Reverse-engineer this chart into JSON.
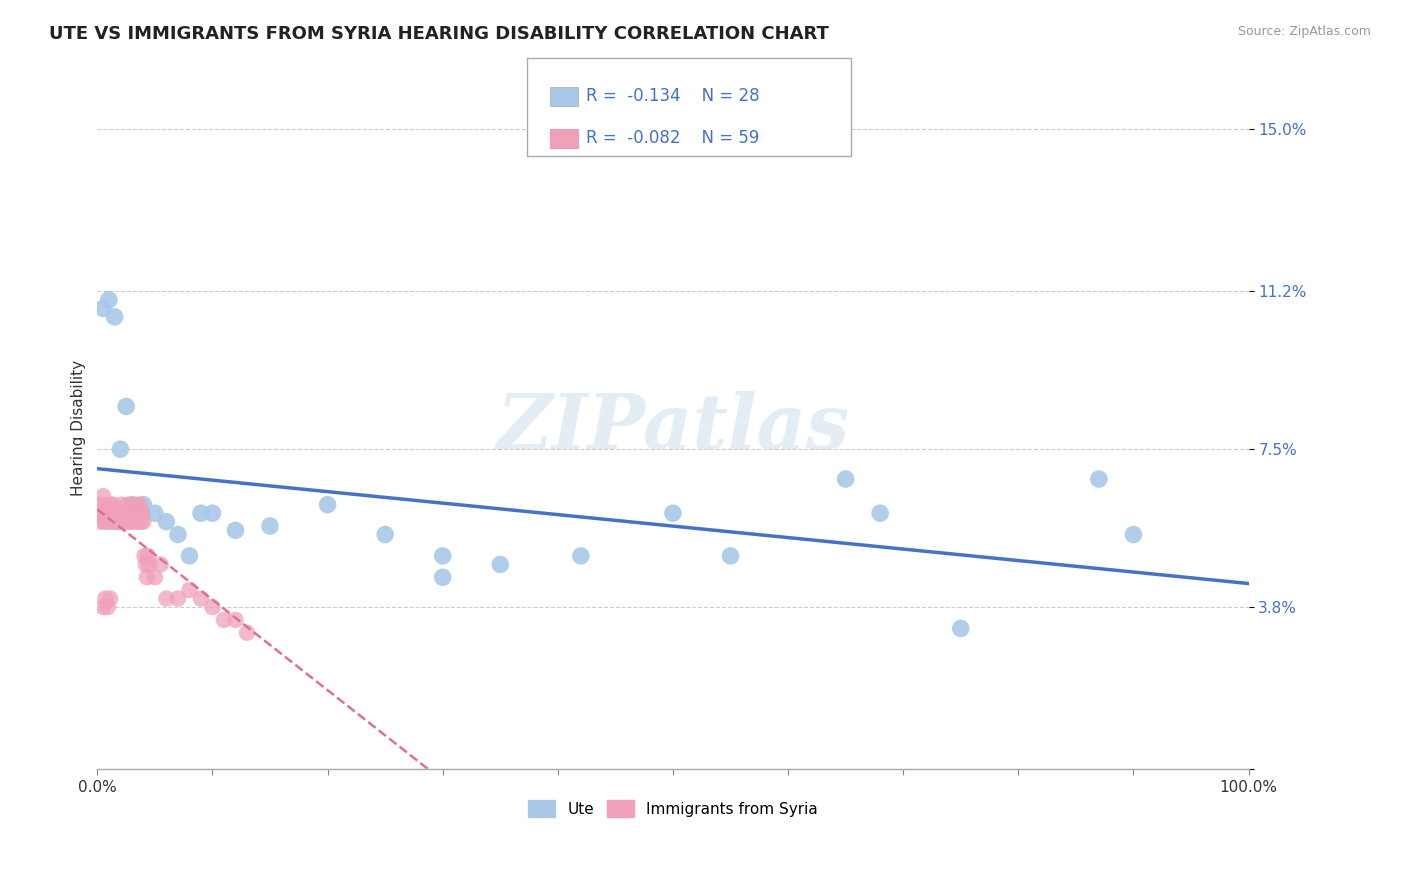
{
  "title": "UTE VS IMMIGRANTS FROM SYRIA HEARING DISABILITY CORRELATION CHART",
  "source": "Source: ZipAtlas.com",
  "ylabel": "Hearing Disability",
  "ytick_vals": [
    0.0,
    0.038,
    0.075,
    0.112,
    0.15
  ],
  "ytick_labels": [
    "",
    "3.8%",
    "7.5%",
    "11.2%",
    "15.0%"
  ],
  "ylim": [
    0.0,
    0.16
  ],
  "xlim": [
    0.0,
    1.0
  ],
  "blue_color": "#a8c8e8",
  "pink_color": "#f0a0b8",
  "trendline_blue": "#4472c4",
  "trendline_pink": "#e07090",
  "legend_blue_R": "-0.134",
  "legend_blue_N": "28",
  "legend_pink_R": "-0.082",
  "legend_pink_N": "59",
  "legend_label_blue": "Ute",
  "legend_label_pink": "Immigrants from Syria",
  "ute_x": [
    0.005,
    0.01,
    0.015,
    0.02,
    0.025,
    0.03,
    0.04,
    0.05,
    0.06,
    0.07,
    0.08,
    0.09,
    0.1,
    0.12,
    0.15,
    0.2,
    0.25,
    0.3,
    0.35,
    0.42,
    0.5,
    0.65,
    0.75,
    0.87,
    0.3,
    0.55,
    0.68,
    0.9
  ],
  "ute_y": [
    0.108,
    0.11,
    0.106,
    0.075,
    0.085,
    0.062,
    0.062,
    0.06,
    0.058,
    0.055,
    0.05,
    0.06,
    0.06,
    0.056,
    0.057,
    0.062,
    0.055,
    0.05,
    0.048,
    0.05,
    0.06,
    0.068,
    0.033,
    0.068,
    0.045,
    0.05,
    0.06,
    0.055
  ],
  "syria_x": [
    0.001,
    0.002,
    0.003,
    0.004,
    0.005,
    0.006,
    0.007,
    0.008,
    0.009,
    0.01,
    0.011,
    0.012,
    0.013,
    0.014,
    0.015,
    0.016,
    0.017,
    0.018,
    0.019,
    0.02,
    0.021,
    0.022,
    0.023,
    0.024,
    0.025,
    0.026,
    0.027,
    0.028,
    0.029,
    0.03,
    0.031,
    0.032,
    0.033,
    0.034,
    0.035,
    0.036,
    0.037,
    0.038,
    0.039,
    0.04,
    0.041,
    0.042,
    0.043,
    0.044,
    0.045,
    0.05,
    0.055,
    0.06,
    0.07,
    0.08,
    0.09,
    0.1,
    0.11,
    0.12,
    0.13,
    0.005,
    0.007,
    0.009,
    0.011
  ],
  "syria_y": [
    0.06,
    0.062,
    0.058,
    0.06,
    0.064,
    0.058,
    0.062,
    0.06,
    0.058,
    0.06,
    0.062,
    0.058,
    0.06,
    0.062,
    0.058,
    0.06,
    0.058,
    0.06,
    0.058,
    0.06,
    0.062,
    0.058,
    0.06,
    0.058,
    0.06,
    0.062,
    0.058,
    0.06,
    0.058,
    0.06,
    0.062,
    0.058,
    0.06,
    0.062,
    0.058,
    0.06,
    0.062,
    0.058,
    0.06,
    0.058,
    0.05,
    0.048,
    0.045,
    0.05,
    0.048,
    0.045,
    0.048,
    0.04,
    0.04,
    0.042,
    0.04,
    0.038,
    0.035,
    0.035,
    0.032,
    0.038,
    0.04,
    0.038,
    0.04
  ],
  "background_color": "#ffffff",
  "grid_color": "#cccccc",
  "title_fontsize": 13,
  "axis_label_fontsize": 11,
  "tick_fontsize": 11
}
